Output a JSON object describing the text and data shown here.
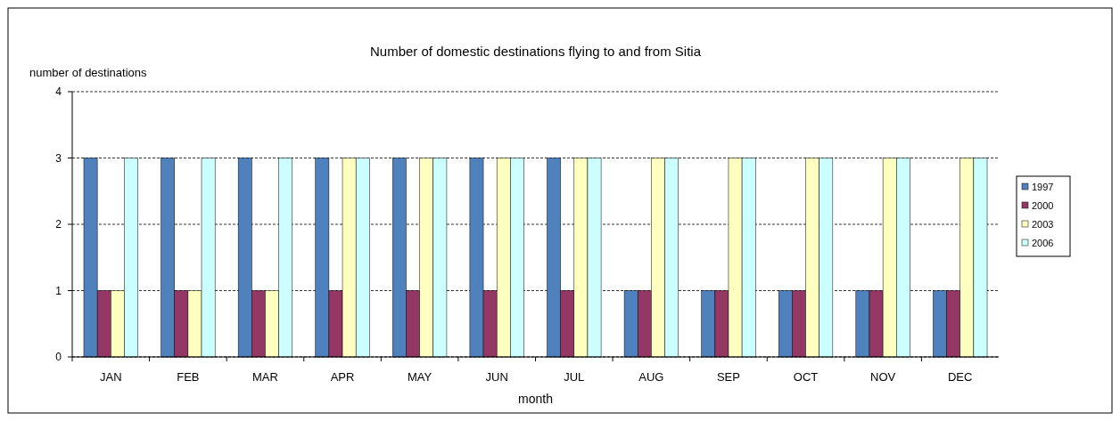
{
  "chart_data": {
    "type": "bar",
    "title": "Number of domestic destinations flying to and from Sitia",
    "xlabel": "month",
    "ylabel": "number of destinations",
    "categories": [
      "JAN",
      "FEB",
      "MAR",
      "APR",
      "MAY",
      "JUN",
      "JUL",
      "AUG",
      "SEP",
      "OCT",
      "NOV",
      "DEC"
    ],
    "series": [
      {
        "name": "1997",
        "color": "#4f81bd",
        "values": [
          3,
          3,
          3,
          3,
          3,
          3,
          3,
          1,
          1,
          1,
          1,
          1
        ]
      },
      {
        "name": "2000",
        "color": "#953764",
        "values": [
          1,
          1,
          1,
          1,
          1,
          1,
          1,
          1,
          1,
          1,
          1,
          1
        ]
      },
      {
        "name": "2003",
        "color": "#ffffc0",
        "values": [
          1,
          1,
          1,
          3,
          3,
          3,
          3,
          3,
          3,
          3,
          3,
          3
        ]
      },
      {
        "name": "2006",
        "color": "#ccffff",
        "values": [
          3,
          3,
          3,
          3,
          3,
          3,
          3,
          3,
          3,
          3,
          3,
          3
        ]
      }
    ],
    "ylim": [
      0,
      4
    ],
    "yticks": [
      0,
      1,
      2,
      3,
      4
    ],
    "grid": "y",
    "legend": "right"
  }
}
